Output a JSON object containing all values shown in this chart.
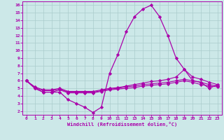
{
  "bg_color": "#cce8e8",
  "grid_color": "#aacccc",
  "line_color": "#aa00aa",
  "hours": [
    0,
    1,
    2,
    3,
    4,
    5,
    6,
    7,
    8,
    9,
    10,
    11,
    12,
    13,
    14,
    15,
    16,
    17,
    18,
    19,
    20,
    21,
    22,
    23
  ],
  "temp": [
    6,
    5,
    4.5,
    4.5,
    4.5,
    3.5,
    3.0,
    2.5,
    1.8,
    2.5,
    7.0,
    9.5,
    12.5,
    14.5,
    15.5,
    16.0,
    14.5,
    12.0,
    9.0,
    7.5,
    6.0,
    5.8,
    5.0,
    5.5
  ],
  "line1": [
    6,
    5.2,
    4.8,
    4.8,
    5.0,
    4.6,
    4.6,
    4.6,
    4.6,
    4.8,
    5.0,
    5.1,
    5.3,
    5.5,
    5.7,
    5.9,
    6.0,
    6.2,
    6.5,
    7.5,
    6.5,
    6.2,
    5.8,
    5.5
  ],
  "line2": [
    6,
    5.1,
    4.7,
    4.7,
    4.9,
    4.5,
    4.5,
    4.5,
    4.5,
    4.7,
    4.9,
    5.0,
    5.2,
    5.3,
    5.5,
    5.6,
    5.7,
    5.8,
    6.0,
    6.2,
    6.0,
    5.8,
    5.5,
    5.3
  ],
  "line3": [
    6,
    5.0,
    4.5,
    4.5,
    4.8,
    4.4,
    4.4,
    4.4,
    4.4,
    4.6,
    4.8,
    4.9,
    5.0,
    5.1,
    5.3,
    5.4,
    5.5,
    5.6,
    5.8,
    6.0,
    5.8,
    5.5,
    5.3,
    5.2
  ],
  "xlabel": "Windchill (Refroidissement éolien,°C)",
  "ylim": [
    1.5,
    16.5
  ],
  "xlim": [
    -0.5,
    23.5
  ],
  "yticks": [
    2,
    3,
    4,
    5,
    6,
    7,
    8,
    9,
    10,
    11,
    12,
    13,
    14,
    15,
    16
  ],
  "xticks": [
    0,
    1,
    2,
    3,
    4,
    5,
    6,
    7,
    8,
    9,
    10,
    11,
    12,
    13,
    14,
    15,
    16,
    17,
    18,
    19,
    20,
    21,
    22,
    23
  ]
}
